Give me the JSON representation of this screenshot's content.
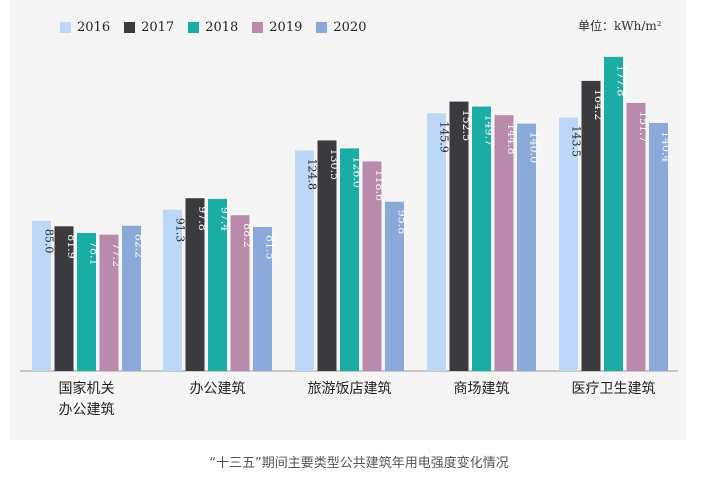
{
  "caption": "“十三五”期间主要类型公共建筑年用电强度变化情况",
  "unit_label": "单位：kWh/m²",
  "colors": {
    "s2016": "#bcd7f7",
    "s2017": "#3a3a3f",
    "s2018": "#1aada6",
    "s2019": "#b98aab",
    "s2020": "#8aa9d9"
  },
  "chart_data": {
    "type": "bar",
    "title": "“十三五”期间主要类型公共建筑年用电强度变化情况",
    "ylabel": "单位：kWh/m²",
    "xlabel": "",
    "ylim": [
      0,
      180
    ],
    "grid": false,
    "legend": "top-left",
    "categories": [
      "国家机关\n办公建筑",
      "办公建筑",
      "旅游饭店建筑",
      "商场建筑",
      "医疗卫生建筑"
    ],
    "series": [
      {
        "name": "2016",
        "values": [
          85.0,
          91.3,
          124.8,
          145.9,
          143.5
        ]
      },
      {
        "name": "2017",
        "values": [
          81.9,
          97.8,
          130.5,
          152.5,
          164.2
        ]
      },
      {
        "name": "2018",
        "values": [
          78.1,
          97.4,
          126.0,
          149.7,
          177.8
        ]
      },
      {
        "name": "2019",
        "values": [
          77.2,
          88.2,
          118.6,
          144.8,
          151.7
        ]
      },
      {
        "name": "2020",
        "values": [
          82.2,
          81.5,
          95.8,
          140.0,
          140.4
        ]
      }
    ]
  }
}
